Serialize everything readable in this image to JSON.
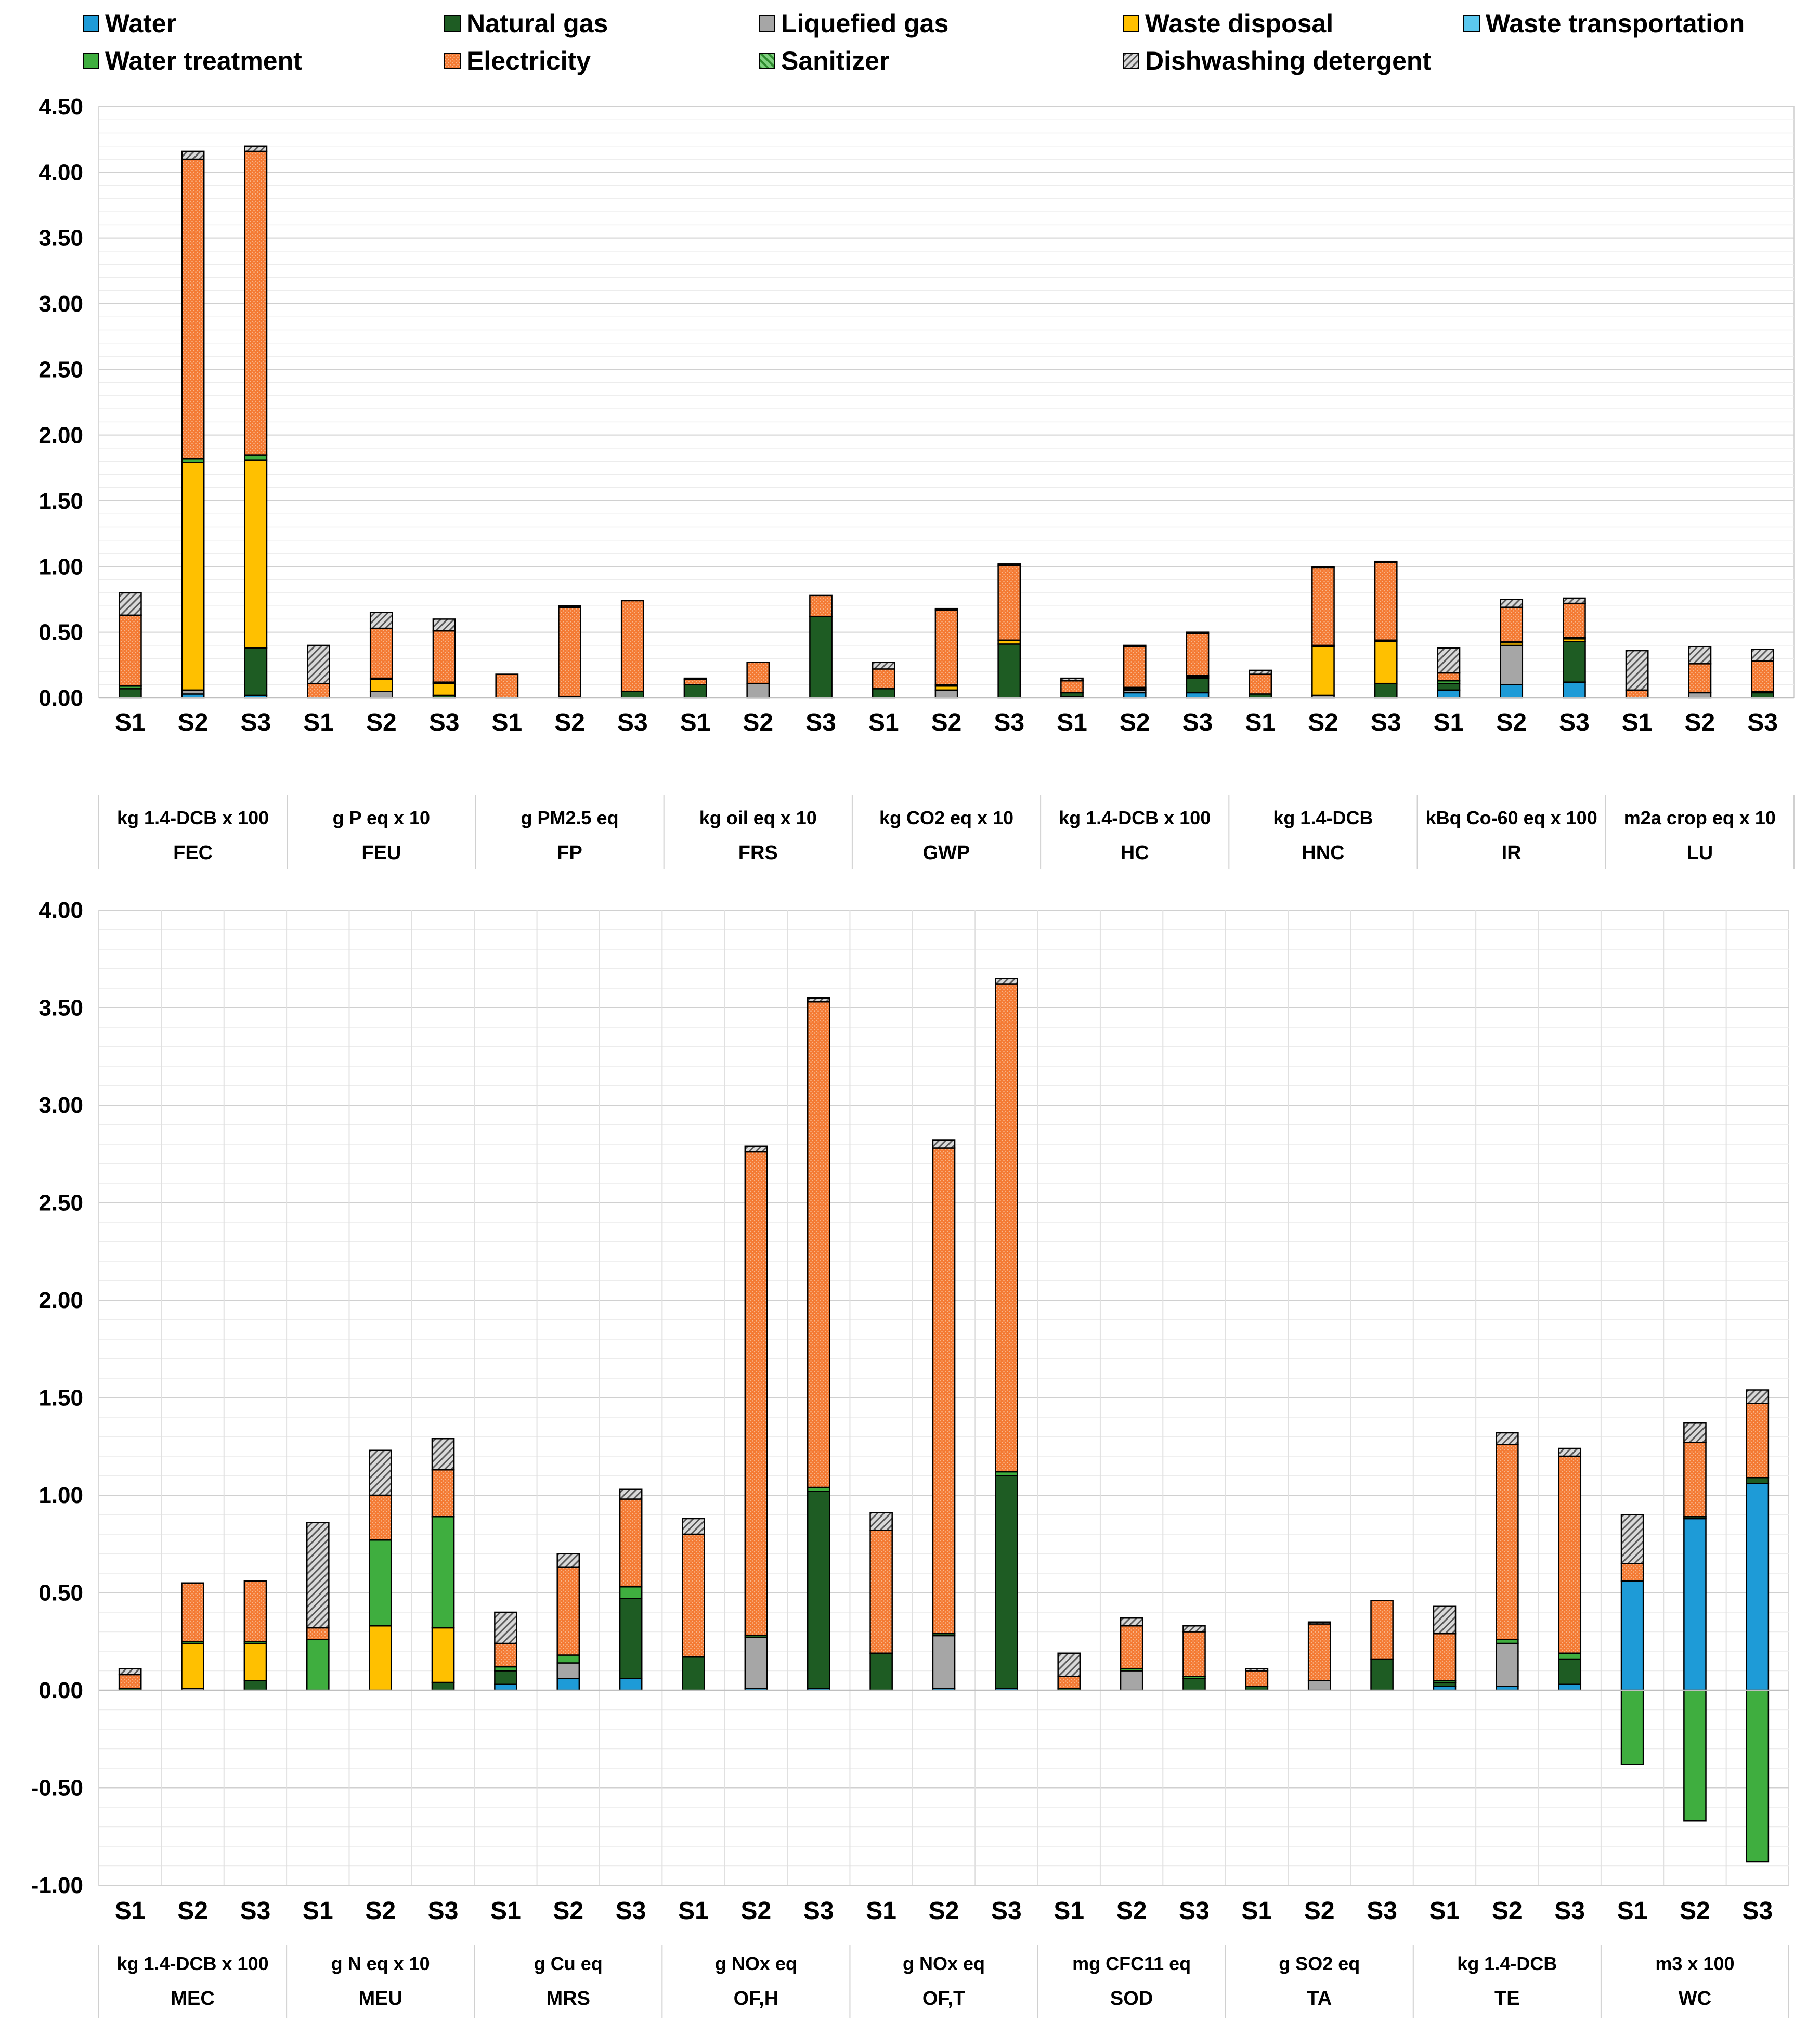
{
  "chart_data": {
    "type": "bar",
    "stacked": true,
    "legend": [
      {
        "name": "Water",
        "color": "#1e9bd7",
        "pattern": "solid"
      },
      {
        "name": "Natural gas",
        "color": "#1e5c23",
        "pattern": "solid"
      },
      {
        "name": "Liquefied gas",
        "color": "#a6a6a6",
        "pattern": "solid"
      },
      {
        "name": "Waste disposal",
        "color": "#ffc000",
        "pattern": "solid"
      },
      {
        "name": "Waste transportation",
        "color": "#5bc8ef",
        "pattern": "solid"
      },
      {
        "name": "Water treatment",
        "color": "#3fae3f",
        "pattern": "solid"
      },
      {
        "name": "Electricity",
        "color": "#f47a33",
        "pattern": "dots"
      },
      {
        "name": "Sanitizer",
        "color": "#7fd07f",
        "pattern": "diagonal"
      },
      {
        "name": "Dishwashing detergent",
        "color": "#b0b0b0",
        "pattern": "hatch"
      }
    ],
    "scenario_labels": [
      "S1",
      "S2",
      "S3"
    ],
    "panels": [
      {
        "ylim": [
          0,
          4.5
        ],
        "yticks": [
          0.0,
          0.5,
          1.0,
          1.5,
          2.0,
          2.5,
          3.0,
          3.5,
          4.0,
          4.5
        ],
        "tick_labels": [
          "0.00",
          "0.50",
          "1.00",
          "1.50",
          "2.00",
          "2.50",
          "3.00",
          "3.50",
          "4.00",
          "4.50"
        ],
        "groups": [
          {
            "unit": "kg 1.4-DCB x 100",
            "indicator": "FEC",
            "bars": [
              [
                0,
                0.07,
                0,
                0,
                0,
                0.02,
                0.54,
                0,
                0.17
              ],
              [
                0.03,
                0,
                0.03,
                1.73,
                0,
                0.03,
                2.28,
                0,
                0.06
              ],
              [
                0.02,
                0.36,
                0,
                1.43,
                0,
                0.04,
                2.31,
                0,
                0.04
              ]
            ]
          },
          {
            "unit": "g P eq x 10",
            "indicator": "FEU",
            "bars": [
              [
                0,
                0,
                0,
                0,
                0,
                0,
                0.11,
                0,
                0.29
              ],
              [
                0,
                0,
                0.05,
                0.09,
                0,
                0.01,
                0.38,
                0,
                0.12
              ],
              [
                0,
                0.02,
                0,
                0.09,
                0,
                0.01,
                0.39,
                0,
                0.09
              ]
            ]
          },
          {
            "unit": "g PM2.5 eq",
            "indicator": "FP",
            "bars": [
              [
                0,
                0,
                0,
                0,
                0,
                0,
                0.18,
                0,
                0
              ],
              [
                0,
                0,
                0.01,
                0,
                0,
                0,
                0.68,
                0,
                0.01
              ],
              [
                0,
                0.05,
                0,
                0,
                0,
                0,
                0.69,
                0,
                0
              ]
            ]
          },
          {
            "unit": "kg oil eq x 10",
            "indicator": "FRS",
            "bars": [
              [
                0,
                0.1,
                0,
                0,
                0,
                0,
                0.04,
                0,
                0.01
              ],
              [
                0,
                0,
                0.11,
                0,
                0,
                0,
                0.16,
                0,
                0
              ],
              [
                0,
                0.62,
                0,
                0,
                0,
                0,
                0.16,
                0,
                0
              ]
            ]
          },
          {
            "unit": "kg CO2 eq x 10",
            "indicator": "GWP",
            "bars": [
              [
                0,
                0.07,
                0,
                0,
                0,
                0,
                0.15,
                0,
                0.05
              ],
              [
                0,
                0,
                0.06,
                0.03,
                0,
                0.01,
                0.57,
                0,
                0.01
              ],
              [
                0,
                0.41,
                0,
                0.03,
                0,
                0,
                0.57,
                0,
                0.01
              ]
            ]
          },
          {
            "unit": "kg 1.4-DCB x 100",
            "indicator": "HC",
            "bars": [
              [
                0.01,
                0.03,
                0,
                0,
                0,
                0,
                0.09,
                0,
                0.02
              ],
              [
                0.04,
                0,
                0.02,
                0.01,
                0,
                0.01,
                0.31,
                0,
                0.01
              ],
              [
                0.04,
                0.11,
                0,
                0.01,
                0,
                0.01,
                0.32,
                0,
                0.01
              ]
            ]
          },
          {
            "unit": "kg 1.4-DCB",
            "indicator": "HNC",
            "bars": [
              [
                0,
                0.03,
                0,
                0,
                0,
                0,
                0.15,
                0,
                0.03
              ],
              [
                0,
                0,
                0.02,
                0.37,
                0,
                0.01,
                0.59,
                0,
                0.01
              ],
              [
                0,
                0.11,
                0,
                0.32,
                0,
                0.01,
                0.59,
                0,
                0.01
              ]
            ]
          },
          {
            "unit": "kBq Co-60 eq x 100",
            "indicator": "IR",
            "bars": [
              [
                0.06,
                0.05,
                0,
                0,
                0,
                0.02,
                0.06,
                0,
                0.19
              ],
              [
                0.1,
                0,
                0.3,
                0.02,
                0,
                0.01,
                0.26,
                0,
                0.06
              ],
              [
                0.12,
                0.31,
                0,
                0.02,
                0,
                0.01,
                0.26,
                0,
                0.04
              ]
            ]
          },
          {
            "unit": "m2a crop eq x 10",
            "indicator": "LU",
            "bars": [
              [
                0,
                0,
                0,
                0,
                0,
                0,
                0.06,
                0,
                0.3
              ],
              [
                0,
                0,
                0.04,
                0,
                0,
                0,
                0.22,
                0,
                0.13
              ],
              [
                0,
                0.04,
                0,
                0,
                0,
                0.01,
                0.23,
                0,
                0.09
              ]
            ]
          }
        ]
      },
      {
        "ylim": [
          -1.0,
          4.0
        ],
        "yticks": [
          -1.0,
          -0.5,
          0.0,
          0.5,
          1.0,
          1.5,
          2.0,
          2.5,
          3.0,
          3.5,
          4.0
        ],
        "tick_labels": [
          "-1.00",
          "-0.50",
          "0.00",
          "0.50",
          "1.00",
          "1.50",
          "2.00",
          "2.50",
          "3.00",
          "3.50",
          "4.00"
        ],
        "groups": [
          {
            "unit": "kg 1.4-DCB x 100",
            "indicator": "MEC",
            "bars": [
              [
                0,
                0.01,
                0,
                0,
                0,
                0,
                0.07,
                0,
                0.03
              ],
              [
                0,
                0,
                0.01,
                0.23,
                0,
                0.01,
                0.3,
                0,
                0
              ],
              [
                0,
                0.05,
                0,
                0.19,
                0,
                0.01,
                0.31,
                0,
                0
              ]
            ]
          },
          {
            "unit": "g N eq x 10",
            "indicator": "MEU",
            "bars": [
              [
                0,
                0,
                0,
                0,
                0,
                0.26,
                0.06,
                0,
                0.54
              ],
              [
                0,
                0,
                0,
                0.33,
                0,
                0.44,
                0.23,
                0,
                0.23
              ],
              [
                0,
                0.04,
                0,
                0.28,
                0,
                0.57,
                0.24,
                0,
                0.16
              ]
            ]
          },
          {
            "unit": "g Cu eq",
            "indicator": "MRS",
            "bars": [
              [
                0.03,
                0.07,
                0,
                0,
                0,
                0.02,
                0.12,
                0,
                0.16
              ],
              [
                0.06,
                0,
                0.08,
                0,
                0,
                0.04,
                0.45,
                0,
                0.07
              ],
              [
                0.06,
                0.41,
                0,
                0,
                0,
                0.06,
                0.45,
                0,
                0.05
              ]
            ]
          },
          {
            "unit": "g NOx eq",
            "indicator": "OF,H",
            "bars": [
              [
                0,
                0.17,
                0,
                0,
                0,
                0,
                0.63,
                0,
                0.08
              ],
              [
                0.01,
                0,
                0.26,
                0,
                0,
                0.01,
                2.48,
                0,
                0.03
              ],
              [
                0.01,
                1.01,
                0,
                0,
                0,
                0.02,
                2.49,
                0,
                0.02
              ]
            ]
          },
          {
            "unit": "g NOx eq",
            "indicator": "OF,T",
            "bars": [
              [
                0,
                0.19,
                0,
                0,
                0,
                0,
                0.63,
                0,
                0.09
              ],
              [
                0.01,
                0,
                0.27,
                0,
                0,
                0.01,
                2.49,
                0,
                0.04
              ],
              [
                0.01,
                1.09,
                0,
                0,
                0,
                0.02,
                2.5,
                0,
                0.03
              ]
            ]
          },
          {
            "unit": "mg CFC11 eq",
            "indicator": "SOD",
            "bars": [
              [
                0,
                0.01,
                0,
                0,
                0,
                0,
                0.06,
                0,
                0.12
              ],
              [
                0,
                0,
                0.1,
                0,
                0,
                0.01,
                0.22,
                0,
                0.04
              ],
              [
                0,
                0.06,
                0,
                0,
                0,
                0.01,
                0.23,
                0,
                0.03
              ]
            ]
          },
          {
            "unit": "g SO2 eq",
            "indicator": "TA",
            "bars": [
              [
                0,
                0.02,
                0,
                0,
                0,
                0,
                0.08,
                0,
                0.01
              ],
              [
                0,
                0,
                0.05,
                0,
                0,
                0,
                0.29,
                0,
                0.01
              ],
              [
                0,
                0.16,
                0,
                0,
                0,
                0,
                0.3,
                0,
                0
              ]
            ]
          },
          {
            "unit": "kg 1.4-DCB",
            "indicator": "TE",
            "bars": [
              [
                0.02,
                0.02,
                0,
                0,
                0,
                0.01,
                0.24,
                0,
                0.14
              ],
              [
                0.02,
                0,
                0.22,
                0,
                0,
                0.02,
                1.0,
                0,
                0.06
              ],
              [
                0.03,
                0.13,
                0,
                0,
                0,
                0.03,
                1.01,
                0,
                0.04
              ]
            ]
          },
          {
            "unit": "m3 x 100",
            "indicator": "WC",
            "bars": [
              [
                0.56,
                0,
                0,
                0,
                0,
                -0.38,
                0.09,
                0,
                0.25
              ],
              [
                0.88,
                0.01,
                0,
                0,
                0,
                -0.67,
                0.38,
                0,
                0.1
              ],
              [
                1.06,
                0.03,
                0,
                0,
                0,
                -0.88,
                0.38,
                0,
                0.07
              ]
            ]
          }
        ]
      }
    ]
  }
}
